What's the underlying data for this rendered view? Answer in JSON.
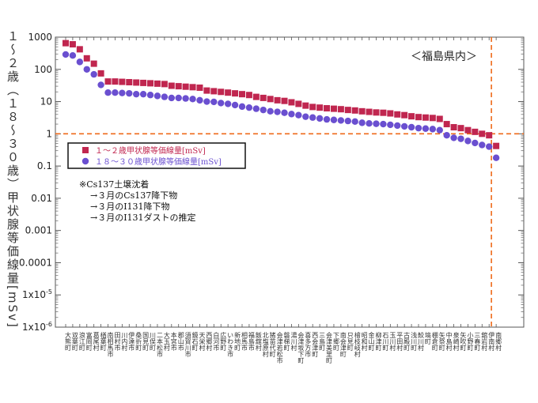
{
  "chart_data": {
    "type": "scatter",
    "y_scale": "log",
    "ylim": [
      1e-06,
      1000
    ],
    "ylabel": "１〜２歳（１８〜３０歳）甲状腺等価線量[mSv]",
    "ytick_labels": [
      "1000",
      "100",
      "10",
      "1",
      "0.1",
      "0.01",
      "0.001",
      "0.0001",
      "1x10-5",
      "1x10-6"
    ],
    "region_label": "＜福島県内＞",
    "reference_line_y": 1,
    "grid": false,
    "legend_position": "left, below reference line",
    "legend_entries": [
      "１〜２歳甲状腺等価線量[mSv]",
      "１８〜３０歳甲状腺等価線量[mSv]"
    ],
    "note_lines": [
      "※Cs137土壌沈着",
      "→３月のCs137降下物",
      "→３月のI131降下物",
      "→３月のI131ダストの推定"
    ],
    "colors": {
      "child": "#c0264f",
      "adult": "#6a4fd0",
      "reference": "#ef6a1a"
    },
    "categories": [
      "大熊町",
      "双葉町",
      "浪江町",
      "富岡町",
      "葛尾村",
      "楢葉町",
      "南相馬市",
      "田村市",
      "川内村",
      "伊達市",
      "桑折町",
      "国見町",
      "川俣町",
      "二本松市",
      "大玉村",
      "本宮市",
      "郡山市",
      "須賀川市",
      "鏡石町",
      "天栄村",
      "西郷村",
      "白河市",
      "広野町",
      "いわき市",
      "新地町",
      "相馬市",
      "福島市",
      "飯舘村",
      "北塩原村",
      "猪苗代町",
      "会津若松市",
      "磐梯町",
      "湯川村",
      "会津坂下町",
      "喜多方市",
      "西会津町",
      "三島町",
      "会津美里町",
      "下郷町",
      "南会津町",
      "只見町",
      "檜枝岐村",
      "昭和村",
      "金山町",
      "柳津町",
      "石川町",
      "玉川村",
      "平田村",
      "古殿町",
      "浅川町",
      "鮫川村",
      "塙町",
      "棚倉町",
      "矢祭町",
      "中島村",
      "泉崎村",
      "矢吹町",
      "小野町",
      "三春町",
      "舘岩村",
      "伊南村",
      "南郷村"
    ],
    "series": [
      {
        "name": "１〜２歳甲状腺等価線量[mSv]",
        "marker": "square",
        "values": [
          650,
          600,
          420,
          220,
          150,
          75,
          42,
          42,
          41,
          40,
          39,
          38,
          37,
          36,
          35,
          31,
          30,
          29,
          28,
          27,
          22,
          21,
          20,
          19,
          18,
          17,
          16,
          14,
          13,
          12,
          11,
          10.5,
          9.5,
          8.5,
          7.5,
          6.8,
          6.5,
          6.2,
          6.0,
          5.8,
          5.5,
          5.3,
          5.0,
          4.8,
          4.6,
          4.5,
          4.3,
          4.0,
          3.8,
          3.5,
          3.3,
          3.2,
          3.1,
          2.9,
          2.0,
          1.6,
          1.5,
          1.3,
          1.15,
          1.0,
          0.9,
          0.42
        ]
      },
      {
        "name": "１８〜３０歳甲状腺等価線量[mSv]",
        "marker": "circle",
        "values": [
          290,
          270,
          170,
          100,
          70,
          33,
          19,
          19,
          18.5,
          18,
          17,
          17,
          16,
          15,
          14,
          13,
          13,
          12.5,
          12,
          11,
          10,
          9.8,
          9.0,
          8.5,
          7.8,
          7.0,
          6.5,
          6.0,
          5.5,
          5.0,
          4.8,
          4.5,
          4.1,
          3.8,
          3.4,
          3.2,
          3.0,
          2.8,
          2.7,
          2.6,
          2.5,
          2.4,
          2.2,
          2.1,
          2.05,
          2.0,
          1.9,
          1.8,
          1.7,
          1.6,
          1.5,
          1.45,
          1.4,
          1.3,
          0.9,
          0.75,
          0.7,
          0.6,
          0.52,
          0.45,
          0.4,
          0.18
        ]
      }
    ]
  }
}
